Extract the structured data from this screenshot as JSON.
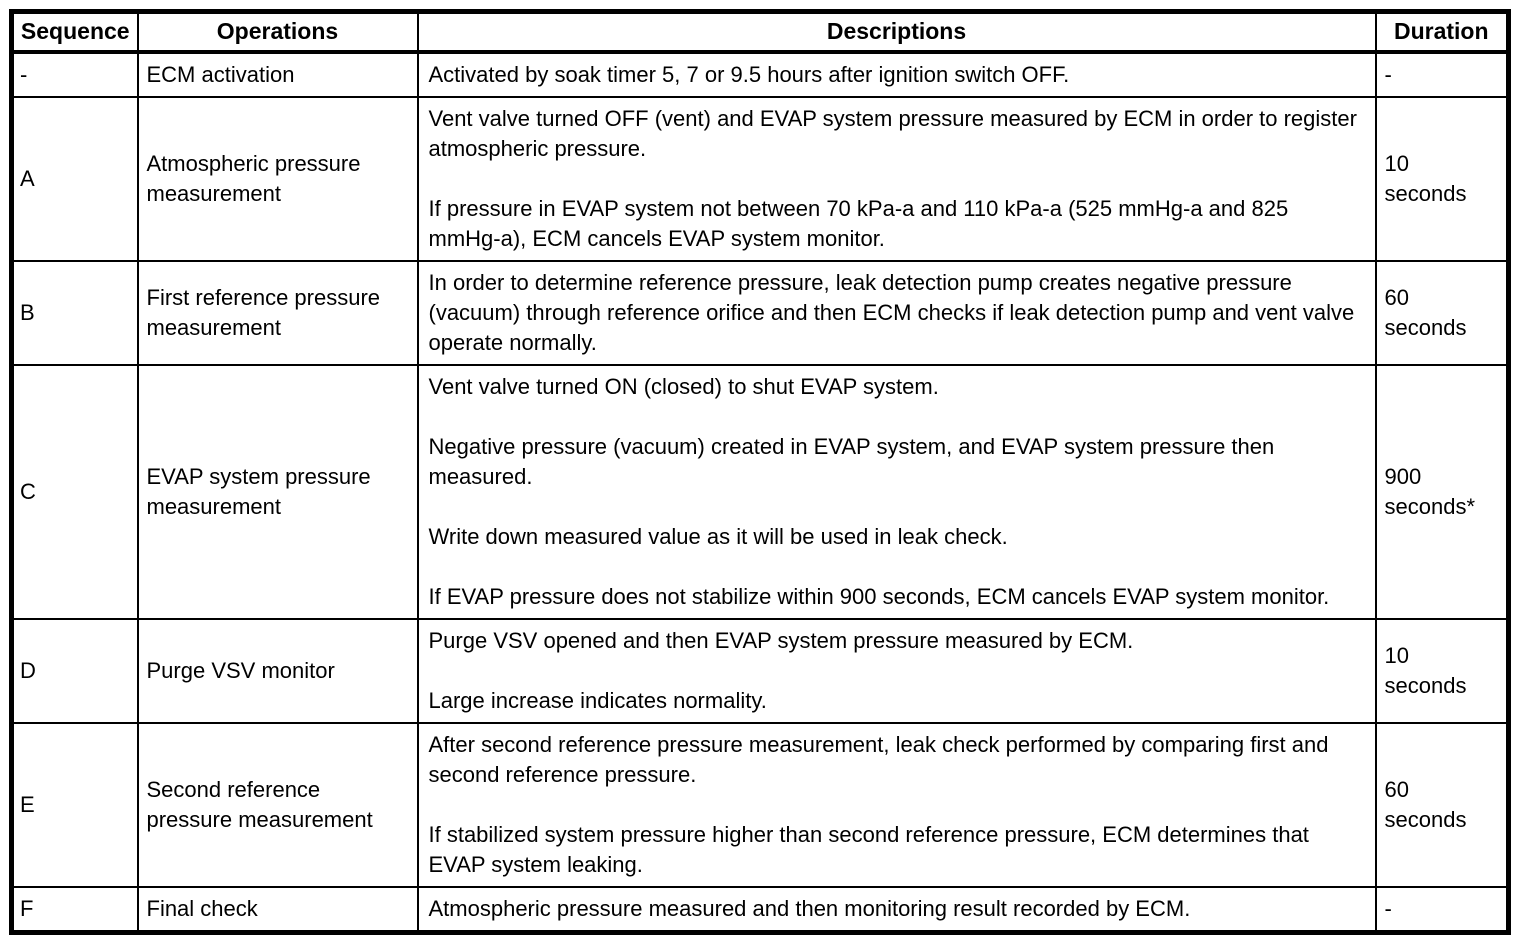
{
  "colors": {
    "border": "#000000",
    "background": "#ffffff",
    "text": "#000000"
  },
  "table": {
    "columns": [
      {
        "label": "Sequence"
      },
      {
        "label": "Operations"
      },
      {
        "label": "Descriptions"
      },
      {
        "label": "Duration"
      }
    ],
    "rows": [
      {
        "sequence": "-",
        "operation": "ECM activation",
        "descriptions": [
          "Activated by soak timer 5, 7 or 9.5 hours after ignition switch OFF."
        ],
        "duration": "-"
      },
      {
        "sequence": "A",
        "operation": "Atmospheric pressure measurement",
        "descriptions": [
          "Vent valve turned OFF (vent) and EVAP system pressure measured by ECM in order to register atmospheric pressure.",
          "If pressure in EVAP system not between 70 kPa-a and 110 kPa-a (525 mmHg-a and 825 mmHg-a), ECM cancels EVAP system monitor."
        ],
        "duration": "10\nseconds"
      },
      {
        "sequence": "B",
        "operation": "First reference pressure measurement",
        "descriptions": [
          "In order to determine reference pressure, leak detection pump creates negative pressure (vacuum) through reference orifice and then ECM checks if leak detection pump and vent valve operate normally."
        ],
        "duration": "60\nseconds"
      },
      {
        "sequence": "C",
        "operation": "EVAP system pressure measurement",
        "descriptions": [
          "Vent valve turned ON (closed) to shut EVAP system.",
          "Negative pressure (vacuum) created in EVAP system, and EVAP system pressure then measured.",
          "Write down measured value as it will be used in leak check.",
          "If EVAP pressure does not stabilize within 900 seconds, ECM cancels EVAP system monitor."
        ],
        "duration": "900\nseconds*"
      },
      {
        "sequence": "D",
        "operation": "Purge VSV monitor",
        "descriptions": [
          "Purge VSV opened and then EVAP system pressure measured by ECM.",
          "Large increase indicates normality."
        ],
        "duration": "10\nseconds"
      },
      {
        "sequence": "E",
        "operation": "Second reference pressure measurement",
        "descriptions": [
          "After second reference pressure measurement, leak check performed by comparing first and second reference pressure.",
          "If stabilized system pressure higher than second reference pressure, ECM determines that EVAP system leaking."
        ],
        "duration": "60\nseconds"
      },
      {
        "sequence": "F",
        "operation": "Final check",
        "descriptions": [
          "Atmospheric pressure measured and then monitoring result recorded by ECM."
        ],
        "duration": "-"
      }
    ]
  }
}
